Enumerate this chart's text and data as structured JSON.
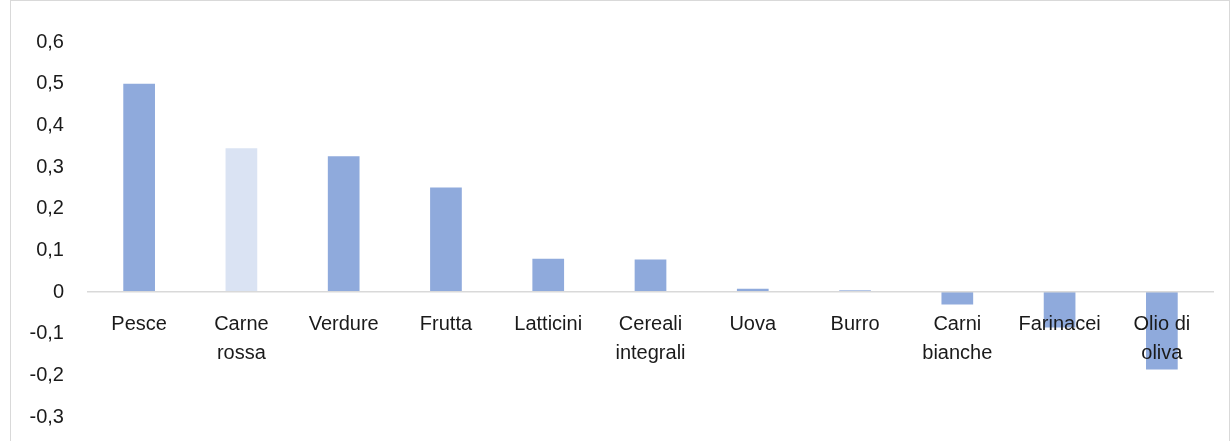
{
  "chart_data": {
    "type": "bar",
    "categories": [
      "Pesce",
      "Carne rossa",
      "Verdure",
      "Frutta",
      "Latticini",
      "Cereali integrali",
      "Uova",
      "Burro",
      "Carni bianche",
      "Farinacei",
      "Olio di oliva"
    ],
    "values": [
      0.5,
      0.345,
      0.326,
      0.251,
      0.08,
      0.078,
      0.008,
      0.004,
      -0.03,
      -0.085,
      -0.186
    ],
    "colors": [
      "#8faadc",
      "#dae3f3",
      "#8faadc",
      "#8faadc",
      "#8faadc",
      "#8faadc",
      "#8faadc",
      "#8faadc",
      "#8faadc",
      "#8faadc",
      "#8faadc"
    ],
    "ylim": [
      -0.3,
      0.6
    ],
    "yticks": [
      {
        "value": -0.3,
        "label": "-0,3"
      },
      {
        "value": -0.2,
        "label": "-0,2"
      },
      {
        "value": -0.1,
        "label": "-0,1"
      },
      0,
      {
        "value": 0.1,
        "label": "0,1"
      },
      {
        "value": 0.2,
        "label": "0,2"
      },
      {
        "value": 0.3,
        "label": "0,3"
      },
      {
        "value": 0.4,
        "label": "0,4"
      },
      {
        "value": 0.5,
        "label": "0,5"
      },
      {
        "value": 0.6,
        "label": "0,6"
      }
    ]
  }
}
